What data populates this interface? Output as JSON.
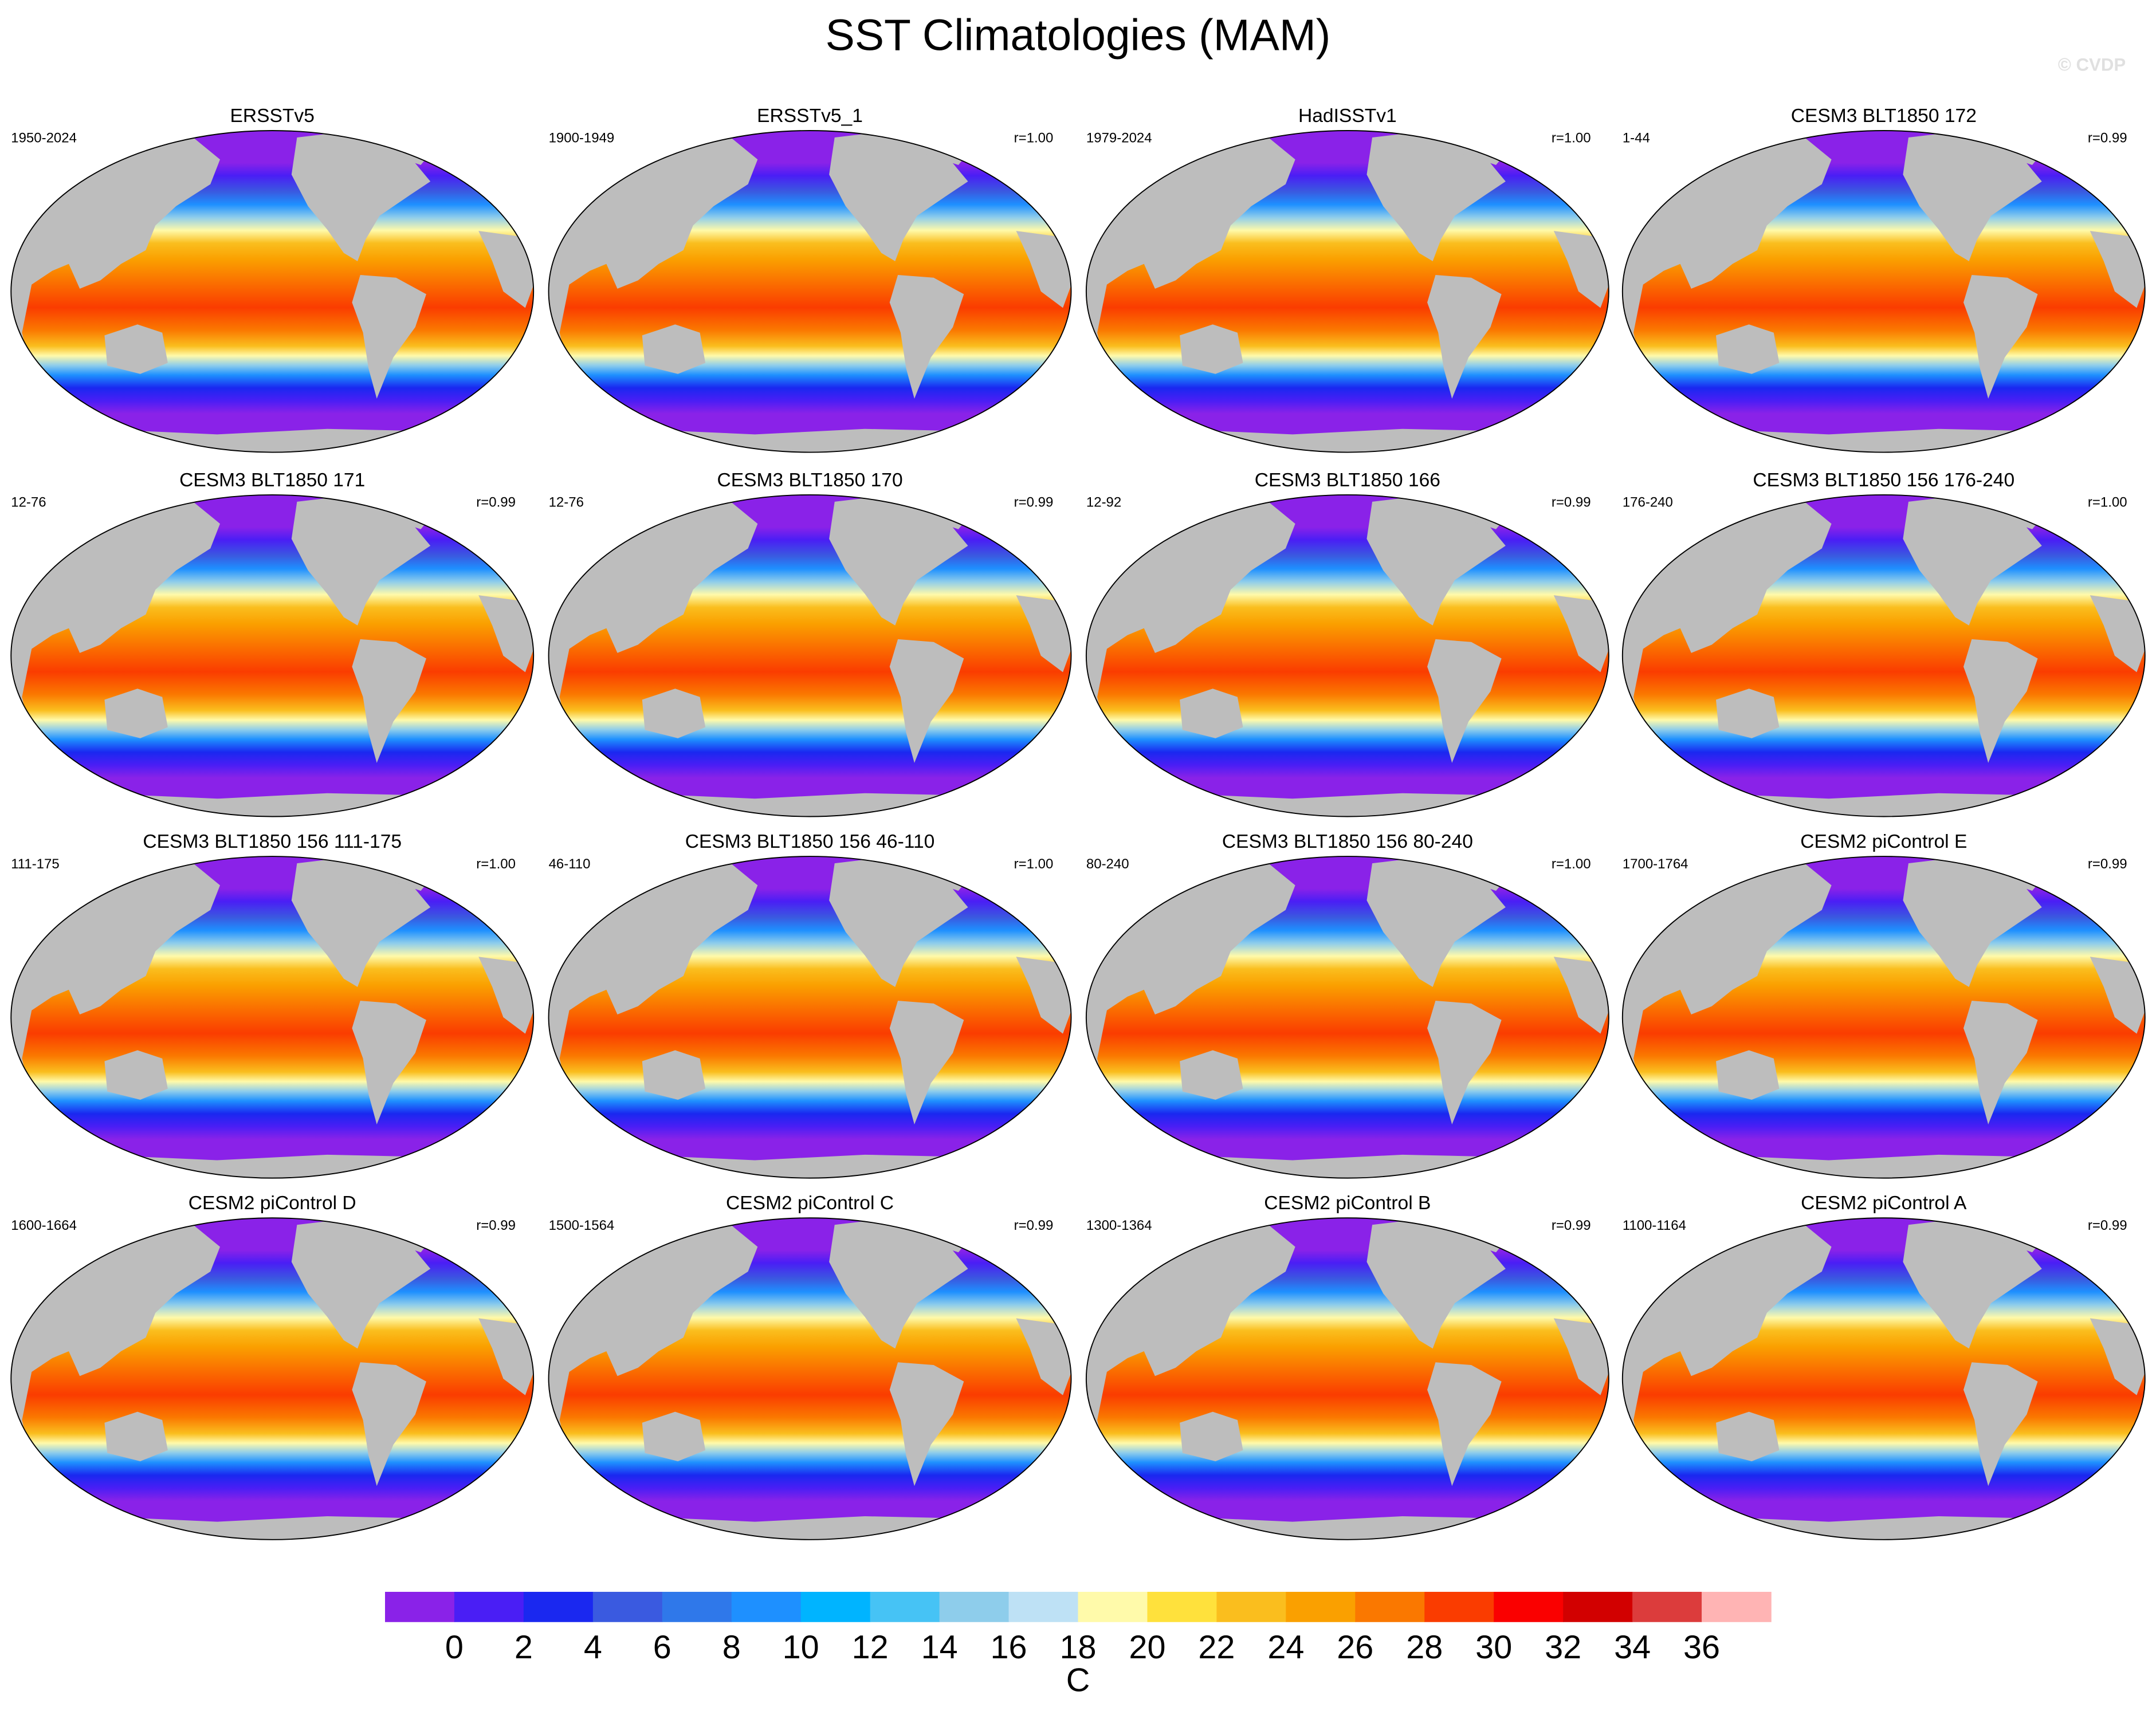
{
  "title": "SST Climatologies (MAM)",
  "watermark": "© CVDP",
  "panels": [
    {
      "title": "ERSSTv5",
      "period": "1950-2024",
      "r": null
    },
    {
      "title": "ERSSTv5_1",
      "period": "1900-1949",
      "r": "r=1.00"
    },
    {
      "title": "HadISSTv1",
      "period": "1979-2024",
      "r": "r=1.00"
    },
    {
      "title": "CESM3 BLT1850 172",
      "period": "1-44",
      "r": "r=0.99"
    },
    {
      "title": "CESM3 BLT1850 171",
      "period": "12-76",
      "r": "r=0.99"
    },
    {
      "title": "CESM3 BLT1850 170",
      "period": "12-76",
      "r": "r=0.99"
    },
    {
      "title": "CESM3 BLT1850 166",
      "period": "12-92",
      "r": "r=0.99"
    },
    {
      "title": "CESM3 BLT1850 156 176-240",
      "period": "176-240",
      "r": "r=1.00"
    },
    {
      "title": "CESM3 BLT1850 156 111-175",
      "period": "111-175",
      "r": "r=1.00"
    },
    {
      "title": "CESM3 BLT1850 156 46-110",
      "period": "46-110",
      "r": "r=1.00"
    },
    {
      "title": "CESM3 BLT1850 156 80-240",
      "period": "80-240",
      "r": "r=1.00"
    },
    {
      "title": "CESM2 piControl E",
      "period": "1700-1764",
      "r": "r=0.99"
    },
    {
      "title": "CESM2 piControl D",
      "period": "1600-1664",
      "r": "r=0.99"
    },
    {
      "title": "CESM2 piControl C",
      "period": "1500-1564",
      "r": "r=0.99"
    },
    {
      "title": "CESM2 piControl B",
      "period": "1300-1364",
      "r": "r=0.99"
    },
    {
      "title": "CESM2 piControl A",
      "period": "1100-1164",
      "r": "r=0.99"
    }
  ],
  "colorbar": {
    "ticks": [
      0,
      2,
      4,
      6,
      8,
      10,
      12,
      14,
      16,
      18,
      20,
      22,
      24,
      26,
      28,
      30,
      32,
      34,
      36
    ],
    "colors": [
      "#8a22e8",
      "#4a1ef5",
      "#1a28f0",
      "#3a5ae0",
      "#2f78ea",
      "#1e90ff",
      "#00b4ff",
      "#46c3f5",
      "#8ecdeb",
      "#bee1f5",
      "#fffaaa",
      "#ffe13c",
      "#fabe1e",
      "#faa000",
      "#fa7800",
      "#fa3c00",
      "#fa0000",
      "#d20000",
      "#dc3c3c",
      "#ffb4b4"
    ],
    "unit": "C"
  }
}
